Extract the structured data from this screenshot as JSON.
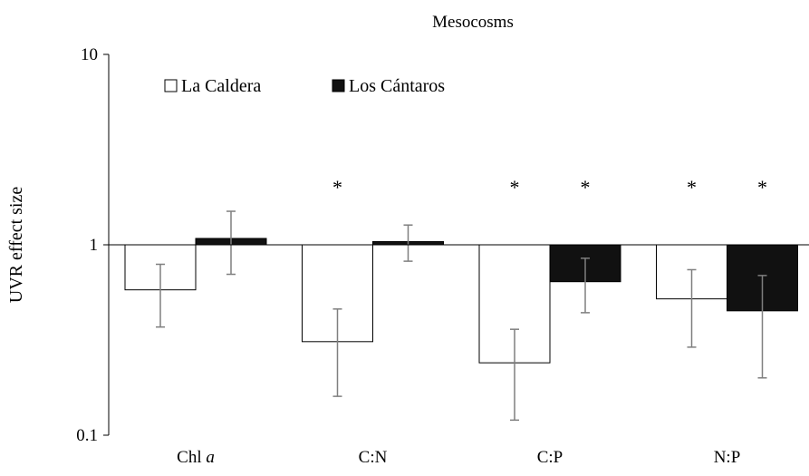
{
  "chart_data": {
    "type": "bar",
    "title": "Mesocosms",
    "ylabel": "UVR effect size",
    "xlabel": "",
    "yscale": "log",
    "ylim": [
      0.1,
      10
    ],
    "yticks": [
      "0.1",
      "1",
      "10"
    ],
    "baseline": 1,
    "grid": false,
    "legend_position": "top-left",
    "categories": [
      {
        "label": "Chl ",
        "italic": "a"
      },
      {
        "label": "C:N",
        "italic": ""
      },
      {
        "label": "C:P",
        "italic": ""
      },
      {
        "label": "N:P",
        "italic": ""
      }
    ],
    "series": [
      {
        "name": "La Caldera",
        "fill": "#ffffff",
        "values": [
          0.58,
          0.31,
          0.24,
          0.52
        ],
        "err_low": [
          0.37,
          0.16,
          0.12,
          0.29
        ],
        "err_high": [
          0.79,
          0.46,
          0.36,
          0.74
        ],
        "significant": [
          false,
          true,
          true,
          true
        ]
      },
      {
        "name": "Los Cántaros",
        "fill": "#111111",
        "values": [
          1.08,
          1.04,
          0.64,
          0.45
        ],
        "err_low": [
          0.7,
          0.82,
          0.44,
          0.2
        ],
        "err_high": [
          1.5,
          1.27,
          0.85,
          0.69
        ],
        "significant": [
          false,
          false,
          true,
          true
        ]
      }
    ],
    "significance_marker": "*",
    "colors": {
      "axis": "#000000",
      "errorbar": "#7f7f7f",
      "bar_outline": "#000000"
    }
  }
}
